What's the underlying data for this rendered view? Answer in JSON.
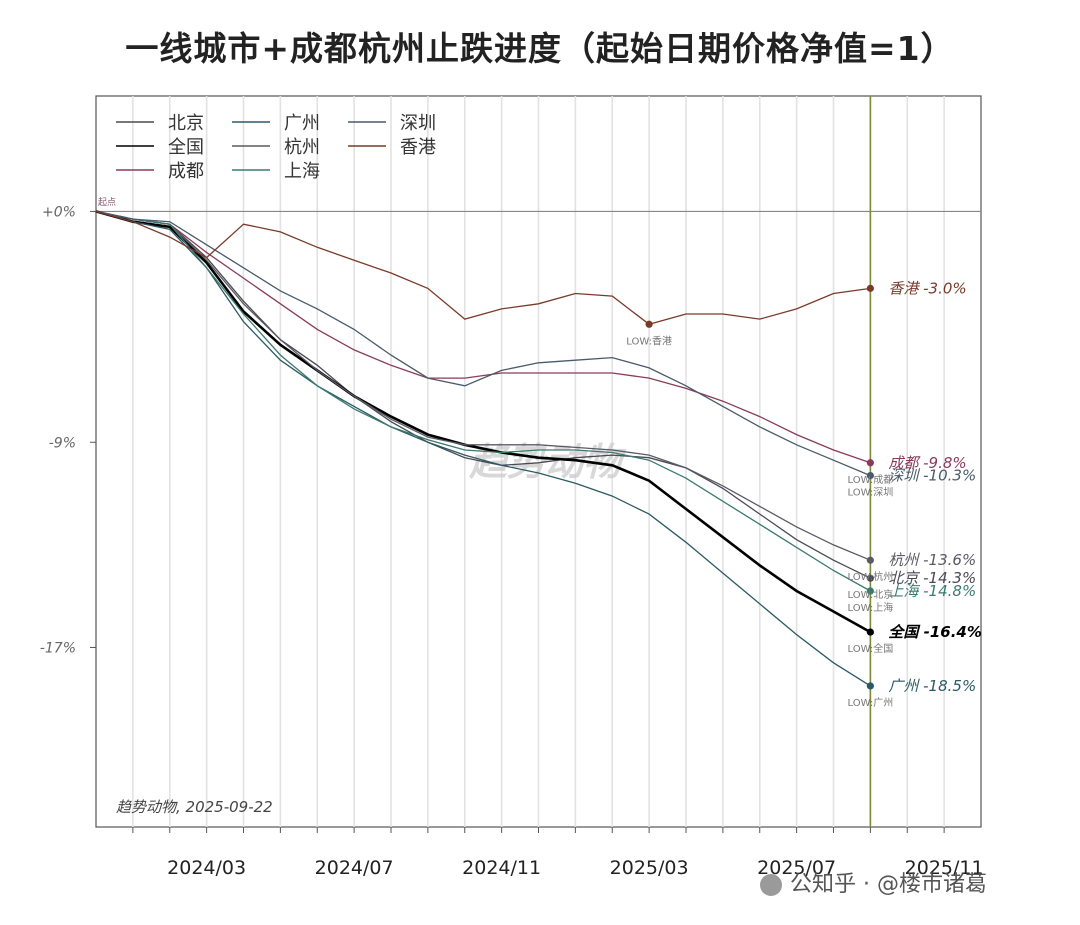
{
  "title": "一线城市+成都杭州止跌进度（起始日期价格净值=1）",
  "watermark": "趋势动物",
  "source_note": "趋势动物, 2025-09-22",
  "footer": "公知乎 · @楼市诸葛",
  "start_marker_label": "起点",
  "chart_data": {
    "type": "line",
    "title": "一线城市+成都杭州止跌进度（起始日期价格净值=1）",
    "xlabel": "",
    "ylabel": "",
    "x_ticks": [
      "2024/03",
      "2024/07",
      "2024/11",
      "2025/03",
      "2025/07",
      "2025/11"
    ],
    "y_ticks": [
      "+0%",
      "-9%",
      "-17%"
    ],
    "y_tick_values": [
      0,
      -9,
      -17
    ],
    "xlim": [
      "2023-12",
      "2025-12"
    ],
    "ylim": [
      -24,
      4.5
    ],
    "vertical_marker": "2025-09",
    "legend_position": "top-left",
    "series": [
      {
        "name": "北京",
        "color": "#4a4a55",
        "end_label": "北京 -14.3%",
        "low_label": "LOW:北京",
        "x": [
          "2023-12",
          "2024-01",
          "2024-02",
          "2024-03",
          "2024-04",
          "2024-05",
          "2024-06",
          "2024-07",
          "2024-08",
          "2024-09",
          "2024-10",
          "2024-11",
          "2024-12",
          "2025-01",
          "2025-02",
          "2025-03",
          "2025-04",
          "2025-05",
          "2025-06",
          "2025-07",
          "2025-08",
          "2025-09"
        ],
        "y": [
          0,
          -0.3,
          -0.5,
          -1.8,
          -3.5,
          -5,
          -6,
          -7.2,
          -8.2,
          -9,
          -9.6,
          -9.9,
          -9.8,
          -9.6,
          -9.5,
          -9.6,
          -10,
          -10.8,
          -11.8,
          -12.8,
          -13.6,
          -14.3
        ]
      },
      {
        "name": "全国",
        "color": "#000000",
        "bold": true,
        "end_label": "全国 -16.4%",
        "low_label": "LOW:全国",
        "x": [
          "2023-12",
          "2024-01",
          "2024-02",
          "2024-03",
          "2024-04",
          "2024-05",
          "2024-06",
          "2024-07",
          "2024-08",
          "2024-09",
          "2024-10",
          "2024-11",
          "2024-12",
          "2025-01",
          "2025-02",
          "2025-03",
          "2025-04",
          "2025-05",
          "2025-06",
          "2025-07",
          "2025-08",
          "2025-09"
        ],
        "y": [
          0,
          -0.4,
          -0.6,
          -2,
          -3.9,
          -5.2,
          -6.2,
          -7.2,
          -8,
          -8.7,
          -9.1,
          -9.4,
          -9.6,
          -9.7,
          -9.9,
          -10.5,
          -11.6,
          -12.7,
          -13.8,
          -14.8,
          -15.6,
          -16.4
        ]
      },
      {
        "name": "成都",
        "color": "#8a3a5a",
        "end_label": "成都 -9.8%",
        "low_label": "LOW:成都",
        "x": [
          "2023-12",
          "2024-01",
          "2024-02",
          "2024-03",
          "2024-04",
          "2024-05",
          "2024-06",
          "2024-07",
          "2024-08",
          "2024-09",
          "2024-10",
          "2024-11",
          "2024-12",
          "2025-01",
          "2025-02",
          "2025-03",
          "2025-04",
          "2025-05",
          "2025-06",
          "2025-07",
          "2025-08",
          "2025-09"
        ],
        "y": [
          0,
          -0.3,
          -0.5,
          -1.6,
          -2.6,
          -3.6,
          -4.6,
          -5.4,
          -6,
          -6.5,
          -6.5,
          -6.3,
          -6.3,
          -6.3,
          -6.3,
          -6.5,
          -6.9,
          -7.4,
          -8,
          -8.7,
          -9.3,
          -9.8
        ]
      },
      {
        "name": "广州",
        "color": "#2b5a66",
        "end_label": "广州 -18.5%",
        "low_label": "LOW:广州",
        "x": [
          "2023-12",
          "2024-01",
          "2024-02",
          "2024-03",
          "2024-04",
          "2024-05",
          "2024-06",
          "2024-07",
          "2024-08",
          "2024-09",
          "2024-10",
          "2024-11",
          "2024-12",
          "2025-01",
          "2025-02",
          "2025-03",
          "2025-04",
          "2025-05",
          "2025-06",
          "2025-07",
          "2025-08",
          "2025-09"
        ],
        "y": [
          0,
          -0.4,
          -0.7,
          -2.2,
          -4.3,
          -5.8,
          -6.8,
          -7.6,
          -8.4,
          -9,
          -9.5,
          -9.9,
          -10.2,
          -10.6,
          -11.1,
          -11.8,
          -12.9,
          -14.1,
          -15.3,
          -16.5,
          -17.6,
          -18.5
        ]
      },
      {
        "name": "杭州",
        "color": "#5a5a66",
        "end_label": "杭州 -13.6%",
        "low_label": "LOW:杭州",
        "x": [
          "2023-12",
          "2024-01",
          "2024-02",
          "2024-03",
          "2024-04",
          "2024-05",
          "2024-06",
          "2024-07",
          "2024-08",
          "2024-09",
          "2024-10",
          "2024-11",
          "2024-12",
          "2025-01",
          "2025-02",
          "2025-03",
          "2025-04",
          "2025-05",
          "2025-06",
          "2025-07",
          "2025-08",
          "2025-09"
        ],
        "y": [
          0,
          -0.3,
          -0.5,
          -1.9,
          -3.6,
          -5,
          -6.2,
          -7.2,
          -8.1,
          -8.8,
          -9.1,
          -9.1,
          -9.1,
          -9.2,
          -9.3,
          -9.5,
          -10,
          -10.7,
          -11.5,
          -12.3,
          -13,
          -13.6
        ]
      },
      {
        "name": "上海",
        "color": "#3b7a6e",
        "end_label": "上海 -14.8%",
        "low_label": "LOW:上海",
        "x": [
          "2023-12",
          "2024-01",
          "2024-02",
          "2024-03",
          "2024-04",
          "2024-05",
          "2024-06",
          "2024-07",
          "2024-08",
          "2024-09",
          "2024-10",
          "2024-11",
          "2024-12",
          "2025-01",
          "2025-02",
          "2025-03",
          "2025-04",
          "2025-05",
          "2025-06",
          "2025-07",
          "2025-08",
          "2025-09"
        ],
        "y": [
          0,
          -0.3,
          -0.5,
          -2.2,
          -4,
          -5.6,
          -6.8,
          -7.7,
          -8.4,
          -8.9,
          -9.3,
          -9.4,
          -9.3,
          -9.3,
          -9.4,
          -9.7,
          -10.4,
          -11.3,
          -12.2,
          -13.1,
          -14,
          -14.8
        ]
      },
      {
        "name": "深圳",
        "color": "#4a5a6a",
        "end_label": "深圳 -10.3%",
        "low_label": "LOW:深圳",
        "x": [
          "2023-12",
          "2024-01",
          "2024-02",
          "2024-03",
          "2024-04",
          "2024-05",
          "2024-06",
          "2024-07",
          "2024-08",
          "2024-09",
          "2024-10",
          "2024-11",
          "2024-12",
          "2025-01",
          "2025-02",
          "2025-03",
          "2025-04",
          "2025-05",
          "2025-06",
          "2025-07",
          "2025-08",
          "2025-09"
        ],
        "y": [
          0,
          -0.3,
          -0.4,
          -1.3,
          -2.2,
          -3.1,
          -3.8,
          -4.6,
          -5.6,
          -6.5,
          -6.8,
          -6.2,
          -5.9,
          -5.8,
          -5.7,
          -6.1,
          -6.8,
          -7.6,
          -8.4,
          -9.1,
          -9.7,
          -10.3
        ]
      },
      {
        "name": "香港",
        "color": "#7a3a2a",
        "end_label": "香港 -3.0%",
        "low_label": "LOW:香港",
        "x": [
          "2023-12",
          "2024-01",
          "2024-02",
          "2024-03",
          "2024-04",
          "2024-05",
          "2024-06",
          "2024-07",
          "2024-08",
          "2024-09",
          "2024-10",
          "2024-11",
          "2024-12",
          "2025-01",
          "2025-02",
          "2025-03",
          "2025-04",
          "2025-05",
          "2025-06",
          "2025-07",
          "2025-08",
          "2025-09"
        ],
        "y": [
          0,
          -0.4,
          -1,
          -1.8,
          -0.5,
          -0.8,
          -1.4,
          -1.9,
          -2.4,
          -3,
          -4.2,
          -3.8,
          -3.6,
          -3.2,
          -3.3,
          -4.4,
          -4.0,
          -4.0,
          -4.2,
          -3.8,
          -3.2,
          -3.0
        ]
      }
    ]
  }
}
